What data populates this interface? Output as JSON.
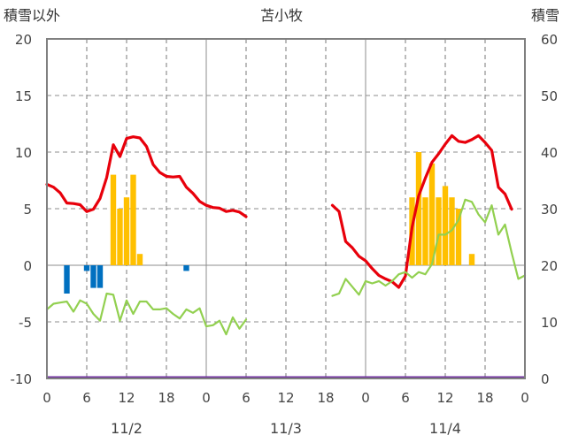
{
  "chart_data": {
    "type": "bar+line",
    "title": "苫小牧",
    "left_axis_label": "積雪以外",
    "right_axis_label": "積雪",
    "left_ylim": [
      -10,
      20
    ],
    "left_yticks": [
      -10,
      -5,
      0,
      5,
      10,
      15,
      20
    ],
    "right_ylim": [
      0,
      60
    ],
    "right_yticks": [
      0,
      10,
      20,
      30,
      40,
      50,
      60
    ],
    "x_hours_range": [
      0,
      72
    ],
    "x_tick_labels": [
      "0",
      "6",
      "12",
      "18",
      "0",
      "6",
      "12",
      "18",
      "0",
      "6",
      "12",
      "18",
      "0"
    ],
    "date_labels": [
      "11/2",
      "11/3",
      "11/4"
    ],
    "grid": "dashed vertical at 6-hour marks, solid vertical at day boundaries, dashed horizontal",
    "colors": {
      "snow_depth": "#e8000b",
      "temperature": "#92d050",
      "precip": "#ffc000",
      "negative_bars": "#0070c0",
      "baseline": "#7030a0",
      "frame": "#808080"
    },
    "series": [
      {
        "axis": "right",
        "type": "line",
        "points": [
          [
            0,
            34.3
          ],
          [
            1,
            33.8
          ],
          [
            2,
            32.8
          ],
          [
            3,
            31
          ],
          [
            4,
            30.9
          ],
          [
            5,
            30.7
          ],
          [
            6,
            29.5
          ],
          [
            7,
            29.9
          ],
          [
            8,
            31.8
          ],
          [
            9,
            35.5
          ],
          [
            10,
            41.3
          ],
          [
            11,
            39.2
          ],
          [
            12,
            42.4
          ],
          [
            13,
            42.7
          ],
          [
            14,
            42.5
          ],
          [
            15,
            41
          ],
          [
            16,
            37.8
          ],
          [
            17,
            36.4
          ],
          [
            18,
            35.7
          ],
          [
            19,
            35.6
          ],
          [
            20,
            35.7
          ],
          [
            21,
            33.8
          ],
          [
            22,
            32.7
          ],
          [
            23,
            31.3
          ],
          [
            24,
            30.6
          ],
          [
            25,
            30.2
          ],
          [
            26,
            30.1
          ],
          [
            27,
            29.5
          ],
          [
            28,
            29.7
          ],
          [
            29,
            29.4
          ],
          [
            30,
            28.6
          ],
          [
            null,
            null
          ],
          [
            43,
            30.6
          ],
          [
            44,
            29.5
          ],
          [
            45,
            24.2
          ],
          [
            46,
            23.1
          ],
          [
            47,
            21.6
          ],
          [
            48,
            20.8
          ],
          [
            49,
            19.4
          ],
          [
            50,
            18.2
          ],
          [
            51,
            17.6
          ],
          [
            52,
            17.1
          ],
          [
            53,
            16.1
          ],
          [
            54,
            18.1
          ],
          [
            55,
            26.7
          ],
          [
            56,
            32.3
          ],
          [
            57,
            35.4
          ],
          [
            58,
            38.2
          ],
          [
            59,
            39.7
          ],
          [
            60,
            41.4
          ],
          [
            61,
            42.9
          ],
          [
            62,
            41.9
          ],
          [
            63,
            41.7
          ],
          [
            64,
            42.2
          ],
          [
            65,
            42.9
          ],
          [
            66,
            41.7
          ],
          [
            67,
            40.3
          ],
          [
            68,
            33.8
          ],
          [
            69,
            32.6
          ],
          [
            70,
            29.9
          ]
        ]
      },
      {
        "axis": "left",
        "type": "line",
        "points": [
          [
            0,
            -3.9
          ],
          [
            1,
            -3.4
          ],
          [
            2,
            -3.3
          ],
          [
            3,
            -3.2
          ],
          [
            4,
            -4.1
          ],
          [
            5,
            -3.1
          ],
          [
            6,
            -3.4
          ],
          [
            7,
            -4.3
          ],
          [
            8,
            -4.9
          ],
          [
            9,
            -2.5
          ],
          [
            10,
            -2.6
          ],
          [
            11,
            -4.9
          ],
          [
            12,
            -3.1
          ],
          [
            13,
            -4.3
          ],
          [
            14,
            -3.2
          ],
          [
            15,
            -3.2
          ],
          [
            16,
            -3.9
          ],
          [
            17,
            -3.9
          ],
          [
            18,
            -3.8
          ],
          [
            19,
            -4.3
          ],
          [
            20,
            -4.7
          ],
          [
            21,
            -3.9
          ],
          [
            22,
            -4.2
          ],
          [
            23,
            -3.8
          ],
          [
            24,
            -5.4
          ],
          [
            25,
            -5.3
          ],
          [
            26,
            -4.9
          ],
          [
            27,
            -6.1
          ],
          [
            28,
            -4.6
          ],
          [
            29,
            -5.6
          ],
          [
            30,
            -4.8
          ],
          [
            null,
            null
          ],
          [
            43,
            -2.7
          ],
          [
            44,
            -2.5
          ],
          [
            45,
            -1.2
          ],
          [
            46,
            -1.9
          ],
          [
            47,
            -2.6
          ],
          [
            48,
            -1.4
          ],
          [
            49,
            -1.6
          ],
          [
            50,
            -1.4
          ],
          [
            51,
            -1.8
          ],
          [
            52,
            -1.4
          ],
          [
            53,
            -0.8
          ],
          [
            54,
            -0.6
          ],
          [
            55,
            -1.1
          ],
          [
            56,
            -0.6
          ],
          [
            57,
            -0.8
          ],
          [
            58,
            0.1
          ],
          [
            59,
            2.7
          ],
          [
            60,
            2.7
          ],
          [
            61,
            3.1
          ],
          [
            62,
            4.0
          ],
          [
            63,
            5.8
          ],
          [
            64,
            5.6
          ],
          [
            65,
            4.5
          ],
          [
            66,
            3.8
          ],
          [
            67,
            5.3
          ],
          [
            68,
            2.7
          ],
          [
            69,
            3.6
          ],
          [
            70,
            1.1
          ],
          [
            71,
            -1.2
          ],
          [
            72,
            -0.9
          ]
        ]
      },
      {
        "axis": "left",
        "type": "bar",
        "values": [
          [
            10,
            8
          ],
          [
            11,
            5
          ],
          [
            12,
            6
          ],
          [
            13,
            8
          ],
          [
            14,
            1
          ],
          [
            55,
            6
          ],
          [
            56,
            10
          ],
          [
            57,
            6
          ],
          [
            58,
            9
          ],
          [
            59,
            6
          ],
          [
            60,
            7
          ],
          [
            61,
            6
          ],
          [
            62,
            5
          ],
          [
            64,
            1
          ]
        ]
      },
      {
        "axis": "left",
        "type": "bar",
        "values": [
          [
            3,
            -2.5
          ],
          [
            6,
            -0.5
          ],
          [
            7,
            -2
          ],
          [
            8,
            -2
          ],
          [
            21,
            -0.5
          ]
        ]
      }
    ]
  }
}
